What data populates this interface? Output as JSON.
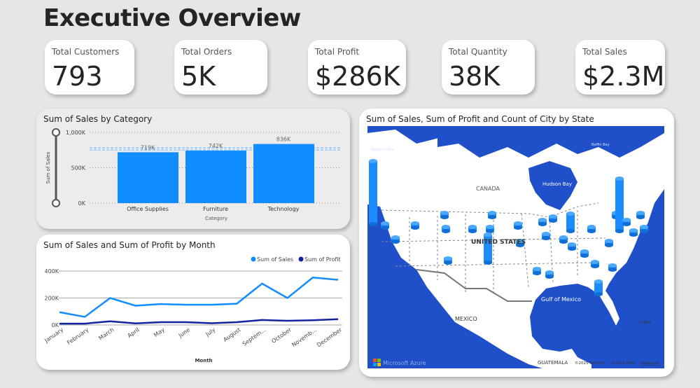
{
  "header": {
    "title": "Executive Overview"
  },
  "kpis": [
    {
      "label": "Total Customers",
      "value": "793"
    },
    {
      "label": "Total Orders",
      "value": "5K"
    },
    {
      "label": "Total Profit",
      "value": "$286K"
    },
    {
      "label": "Total Quantity",
      "value": "38K"
    },
    {
      "label": "Total Sales",
      "value": "$2.3M"
    }
  ],
  "bar_panel": {
    "title": "Sum of Sales by Category"
  },
  "line_panel": {
    "title": "Sum of Sales and Sum of Profit by Month"
  },
  "map_panel": {
    "title": "Sum of Sales, Sum of Profit and Count of City by State",
    "labels": {
      "beaufort": "Beaufort Sea",
      "baffin": "Baffin Bay",
      "hudson": "Hudson Bay",
      "canada": "CANADA",
      "us": "UNITED STATES",
      "gulf": "Gulf of Mexico",
      "mexico": "MEXICO",
      "guatemala": "GUATEMALA",
      "cuba": "CUBA"
    },
    "brand": "Microsoft Azure",
    "credit1": "©2025 TomTom",
    "credit2": "©2025 OSM",
    "feedback": "Feedback",
    "colors": {
      "ocean": "#1f4fc9",
      "land": "#ffffff",
      "columns": "#1a8cff"
    }
  },
  "chart_data": [
    {
      "type": "bar",
      "title": "Sum of Sales by Category",
      "xlabel": "Category",
      "ylabel": "Sum of Sales",
      "categories": [
        "Office Supplies",
        "Furniture",
        "Technology"
      ],
      "values": [
        719,
        742,
        836
      ],
      "data_labels": [
        "719K",
        "742K",
        "836K"
      ],
      "ylim": [
        0,
        1000
      ],
      "yticks": [
        "0K",
        "500K",
        "1,000K"
      ],
      "grid": true,
      "color": "#118dff"
    },
    {
      "type": "line",
      "title": "Sum of Sales and Sum of Profit by Month",
      "xlabel": "Month",
      "ylabel": "",
      "categories": [
        "January",
        "February",
        "March",
        "April",
        "May",
        "June",
        "July",
        "August",
        "Septem...",
        "October",
        "Novemb...",
        "December"
      ],
      "series": [
        {
          "name": "Sum of Sales",
          "color": "#118dff",
          "values": [
            95,
            60,
            200,
            143,
            155,
            150,
            150,
            158,
            307,
            200,
            352,
            335
          ]
        },
        {
          "name": "Sum of Profit",
          "color": "#12239e",
          "values": [
            10,
            10,
            27,
            12,
            21,
            21,
            13,
            21,
            37,
            31,
            35,
            43
          ]
        }
      ],
      "ylim": [
        0,
        400
      ],
      "yticks": [
        "0K",
        "200K",
        "400K"
      ],
      "legend": "top-right",
      "grid": true
    }
  ]
}
